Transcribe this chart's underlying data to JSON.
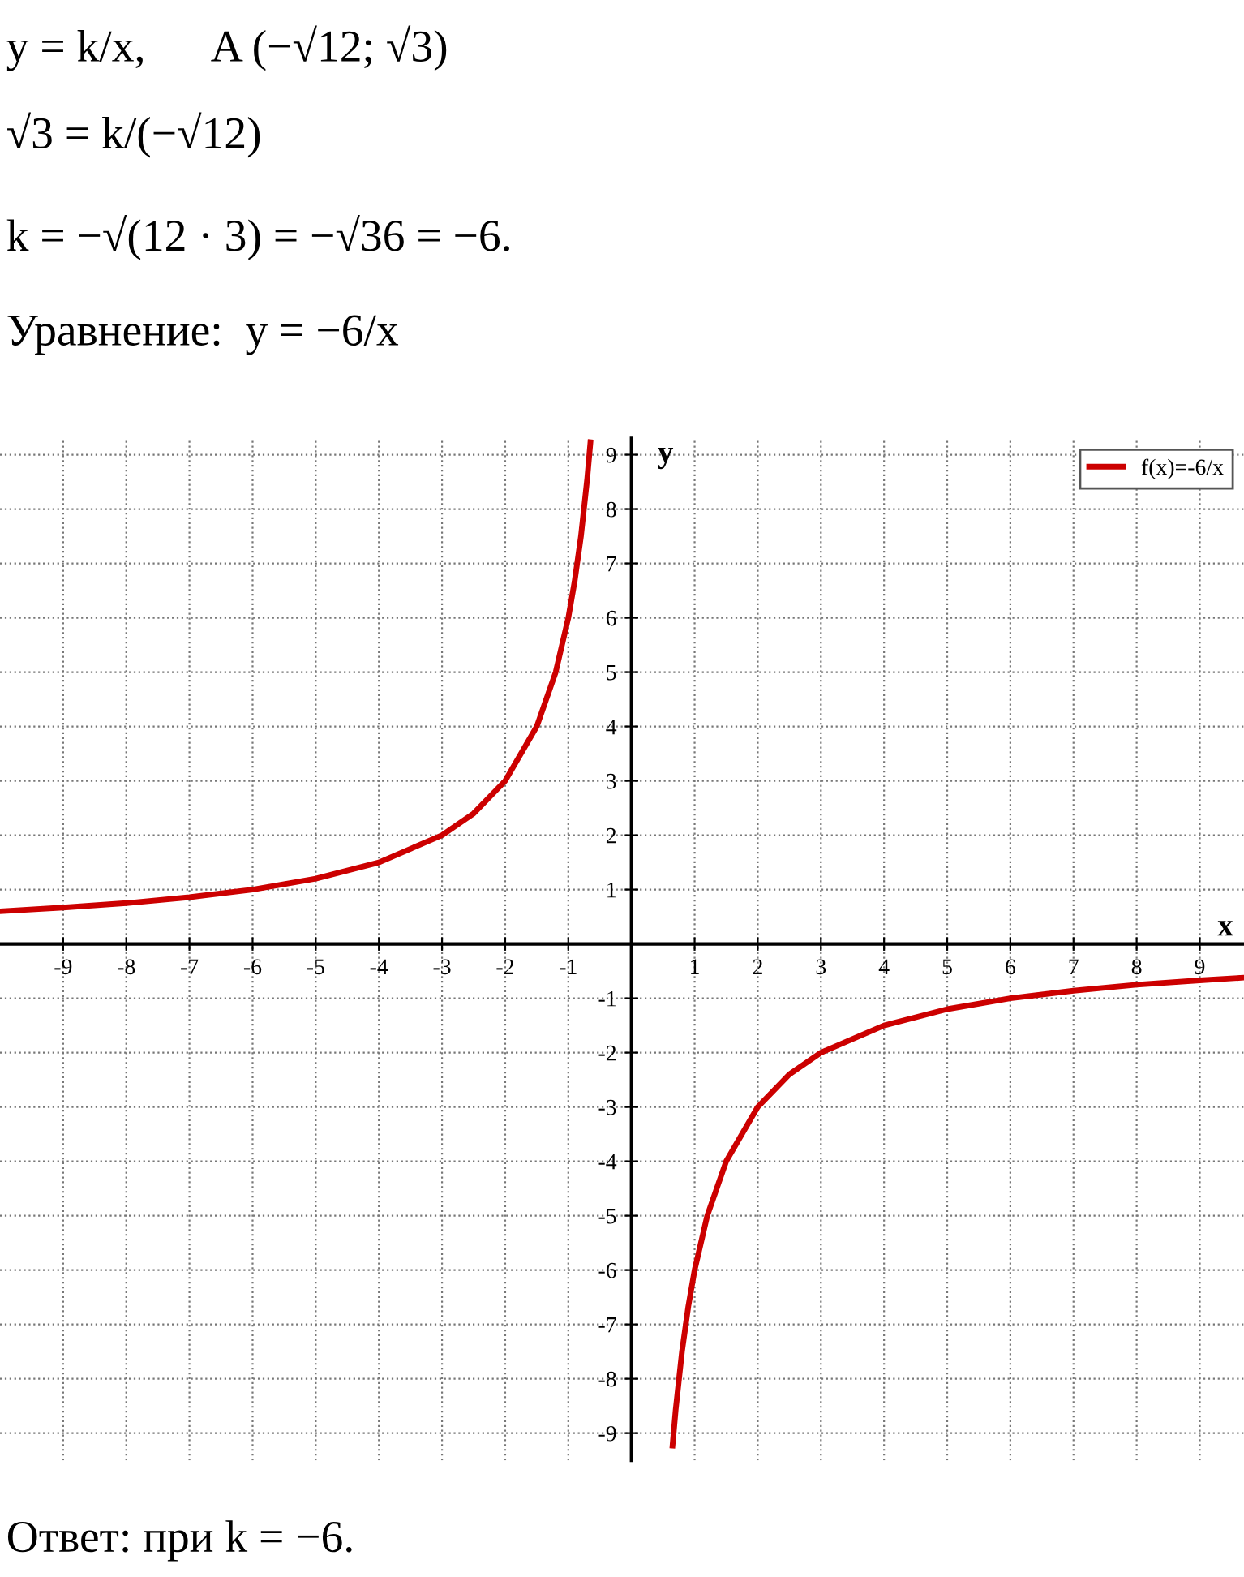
{
  "chart_data": {
    "type": "line",
    "xlabel": "x",
    "ylabel": "y",
    "annotations": [
      "y = k/x,      A (−√12; √3)",
      "√3 = k/(−√12)",
      "k = −√(12 · 3) = −√36 = −6.",
      "Уравнение:  y = −6/x",
      "Ответ: при k = −6."
    ],
    "x": [
      -10,
      -9,
      -8,
      -7,
      -6,
      -5,
      -4,
      -3,
      -2.5,
      -2,
      -1.5,
      -1.2,
      -1,
      -0.9,
      -0.8,
      -0.7,
      -0.65,
      0,
      0.65,
      0.7,
      0.8,
      0.9,
      1,
      1.2,
      1.5,
      2,
      2.5,
      3,
      4,
      5,
      6,
      7,
      8,
      9,
      9.7
    ],
    "series": [
      {
        "name": "f(x)=-6/x",
        "color": "#cc0000",
        "values": [
          0.6,
          0.67,
          0.75,
          0.86,
          1,
          1.2,
          1.5,
          2,
          2.4,
          3,
          4,
          5,
          6,
          6.67,
          7.5,
          8.57,
          9.23,
          null,
          -9.23,
          -8.57,
          -7.5,
          -6.67,
          -6,
          -5,
          -4,
          -3,
          -2.4,
          -2,
          -1.5,
          -1.2,
          -1,
          -0.86,
          -0.75,
          -0.67,
          -0.62
        ]
      }
    ],
    "xlim": [
      -10,
      9.7
    ],
    "ylim": [
      -9.5,
      9.3
    ],
    "xticks": [
      -9,
      -8,
      -7,
      -6,
      -5,
      -4,
      -3,
      -2,
      -1,
      1,
      2,
      3,
      4,
      5,
      6,
      7,
      8,
      9
    ],
    "yticks": [
      -9,
      -8,
      -7,
      -6,
      -5,
      -4,
      -3,
      -2,
      -1,
      1,
      2,
      3,
      4,
      5,
      6,
      7,
      8,
      9
    ],
    "grid": true,
    "legend": "top right",
    "marker": "none",
    "line_style": "solid"
  }
}
